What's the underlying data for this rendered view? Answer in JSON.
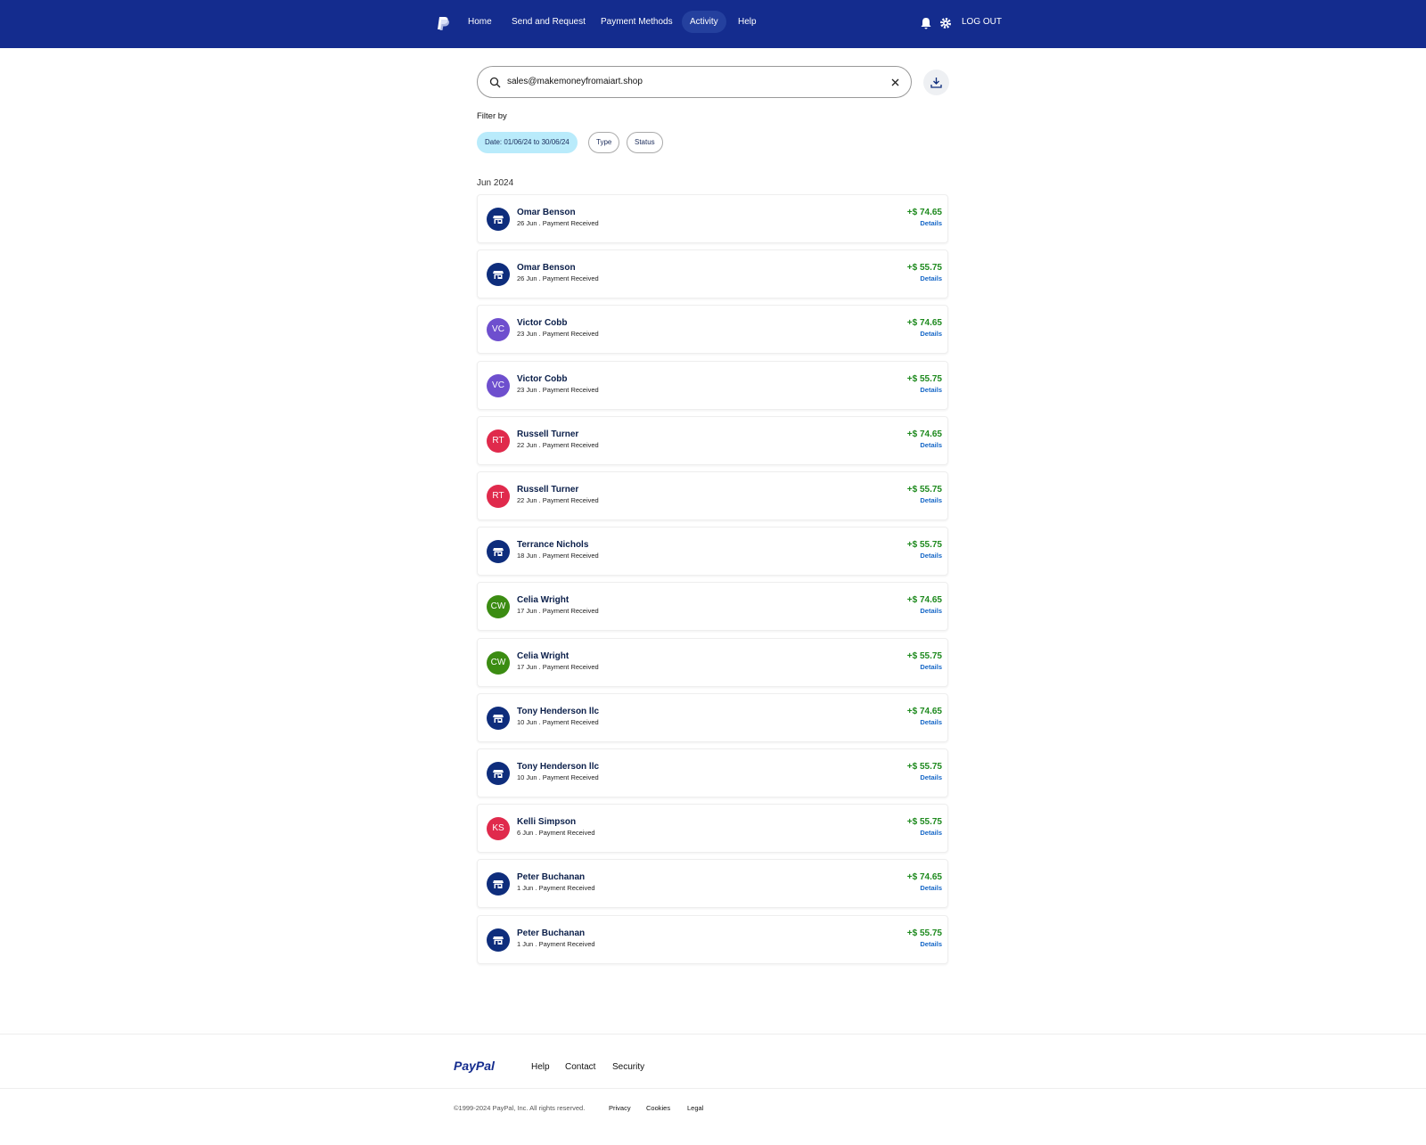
{
  "nav": {
    "items": [
      "Home",
      "Send and Request",
      "Payment Methods",
      "Activity",
      "Help"
    ],
    "active": 3,
    "logout": "LOG OUT"
  },
  "search": {
    "query": "sales@makemoneyfromaiart.shop"
  },
  "filter": {
    "label": "Filter by",
    "chips": [
      "Date: 01/06/24 to 30/06/24",
      "Type",
      "Status"
    ]
  },
  "month": "Jun 2024",
  "details_label": "Details",
  "transactions": [
    {
      "name": "Omar Benson",
      "subtitle": "26 Jun . Payment Received",
      "amount": "+$ 74.65",
      "avatar_color": "#0e2d7c"
    },
    {
      "name": "Omar Benson",
      "subtitle": "26 Jun . Payment Received",
      "amount": "+$ 55.75",
      "avatar_color": "#0e2d7c"
    },
    {
      "name": "Victor Cobb",
      "initials": "VC",
      "subtitle": "23 Jun . Payment Received",
      "amount": "+$ 74.65",
      "avatar_color": "#6e4fce"
    },
    {
      "name": "Victor Cobb",
      "initials": "VC",
      "subtitle": "23 Jun . Payment Received",
      "amount": "+$ 55.75",
      "avatar_color": "#6e4fce"
    },
    {
      "name": "Russell Turner",
      "initials": "RT",
      "subtitle": "22 Jun . Payment Received",
      "amount": "+$ 74.65",
      "avatar_color": "#e02a4c"
    },
    {
      "name": "Russell Turner",
      "initials": "RT",
      "subtitle": "22 Jun . Payment Received",
      "amount": "+$ 55.75",
      "avatar_color": "#e02a4c"
    },
    {
      "name": "Terrance Nichols",
      "subtitle": "18 Jun . Payment Received",
      "amount": "+$ 55.75",
      "avatar_color": "#0e2d7c"
    },
    {
      "name": "Celia Wright",
      "initials": "CW",
      "subtitle": "17 Jun . Payment Received",
      "amount": "+$ 74.65",
      "avatar_color": "#3b8c12"
    },
    {
      "name": "Celia Wright",
      "initials": "CW",
      "subtitle": "17 Jun . Payment Received",
      "amount": "+$ 55.75",
      "avatar_color": "#3b8c12"
    },
    {
      "name": "Tony Henderson llc",
      "subtitle": "10 Jun . Payment Received",
      "amount": "+$ 74.65",
      "avatar_color": "#0e2d7c"
    },
    {
      "name": "Tony Henderson llc",
      "subtitle": "10 Jun . Payment Received",
      "amount": "+$ 55.75",
      "avatar_color": "#0e2d7c"
    },
    {
      "name": "Kelli Simpson",
      "initials": "KS",
      "subtitle": "6 Jun . Payment Received",
      "amount": "+$ 55.75",
      "avatar_color": "#e02a4c"
    },
    {
      "name": "Peter Buchanan",
      "subtitle": "1 Jun . Payment Received",
      "amount": "+$ 74.65",
      "avatar_color": "#0e2d7c"
    },
    {
      "name": "Peter Buchanan",
      "subtitle": "1 Jun . Payment Received",
      "amount": "+$ 55.75",
      "avatar_color": "#0e2d7c"
    }
  ],
  "footer": {
    "brand": "PayPal",
    "links": [
      "Help",
      "Contact",
      "Security"
    ],
    "copyright": "©1999-2024 PayPal, Inc. All rights reserved.",
    "legal": [
      "Privacy",
      "Cookies",
      "Legal"
    ]
  }
}
